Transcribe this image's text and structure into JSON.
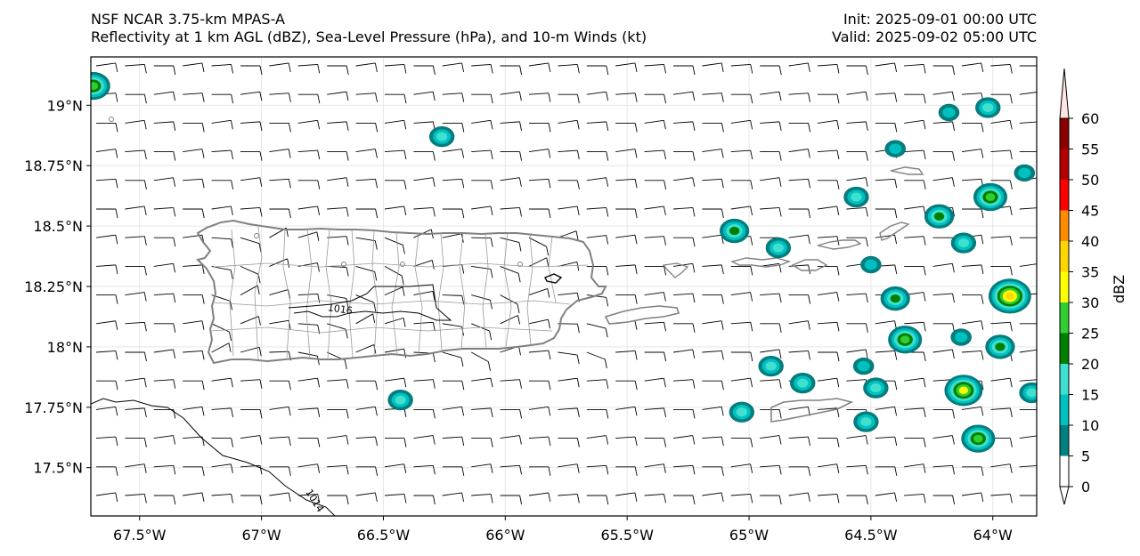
{
  "header": {
    "title_line1": "NSF NCAR 3.75-km MPAS-A",
    "title_line2": "Reflectivity at 1 km AGL (dBZ), Sea-Level Pressure (hPa), and 10-m Winds (kt)",
    "init": "Init: 2025-09-01 00:00 UTC",
    "valid": "Valid: 2025-09-02 05:00 UTC"
  },
  "map": {
    "lon_range": [
      -67.7,
      -63.82
    ],
    "lat_range": [
      17.3,
      19.2
    ],
    "lon_ticks": [
      {
        "value": -67.5,
        "label": "67.5°W"
      },
      {
        "value": -67.0,
        "label": "67°W"
      },
      {
        "value": -66.5,
        "label": "66.5°W"
      },
      {
        "value": -66.0,
        "label": "66°W"
      },
      {
        "value": -65.5,
        "label": "65.5°W"
      },
      {
        "value": -65.0,
        "label": "65°W"
      },
      {
        "value": -64.5,
        "label": "64.5°W"
      },
      {
        "value": -64.0,
        "label": "64°W"
      }
    ],
    "lat_ticks": [
      {
        "value": 19.0,
        "label": "19°N"
      },
      {
        "value": 18.75,
        "label": "18.75°N"
      },
      {
        "value": 18.5,
        "label": "18.5°N"
      },
      {
        "value": 18.25,
        "label": "18.25°N"
      },
      {
        "value": 18.0,
        "label": "18°N"
      },
      {
        "value": 17.75,
        "label": "17.75°N"
      },
      {
        "value": 17.5,
        "label": "17.5°N"
      }
    ],
    "isobars": [
      {
        "label": "1016",
        "label_lon": -66.73,
        "label_lat": 18.15
      },
      {
        "label": "1014",
        "label_lon": -66.82,
        "label_lat": 17.4
      }
    ],
    "coast_color": "#808080",
    "isobar_color": "#000000",
    "wind_barb_color": "#000000"
  },
  "colorbar": {
    "label": "dBZ",
    "ticks": [
      "0",
      "5",
      "10",
      "15",
      "20",
      "25",
      "30",
      "35",
      "40",
      "45",
      "50",
      "55",
      "60"
    ],
    "colors": [
      "#ffffff",
      "#008080",
      "#00c0c0",
      "#40e0d0",
      "#008000",
      "#32cd32",
      "#ffff00",
      "#ffd700",
      "#ff8c00",
      "#ff0000",
      "#b40000",
      "#8b0000",
      "#ff00ff",
      "#ffe4e1"
    ]
  },
  "echoes": [
    {
      "lon": -67.69,
      "lat": 19.08,
      "peak": 25
    },
    {
      "lon": -66.26,
      "lat": 18.87,
      "peak": 15
    },
    {
      "lon": -65.06,
      "lat": 18.48,
      "peak": 20
    },
    {
      "lon": -64.88,
      "lat": 18.41,
      "peak": 15
    },
    {
      "lon": -64.56,
      "lat": 18.62,
      "peak": 15
    },
    {
      "lon": -64.22,
      "lat": 18.54,
      "peak": 20
    },
    {
      "lon": -64.01,
      "lat": 18.62,
      "peak": 25
    },
    {
      "lon": -64.02,
      "lat": 18.99,
      "peak": 15
    },
    {
      "lon": -64.12,
      "lat": 18.43,
      "peak": 15
    },
    {
      "lon": -64.4,
      "lat": 18.2,
      "peak": 20
    },
    {
      "lon": -64.36,
      "lat": 18.03,
      "peak": 25
    },
    {
      "lon": -64.13,
      "lat": 18.04,
      "peak": 10
    },
    {
      "lon": -63.93,
      "lat": 18.21,
      "peak": 35
    },
    {
      "lon": -63.97,
      "lat": 18.0,
      "peak": 20
    },
    {
      "lon": -64.12,
      "lat": 17.82,
      "peak": 30
    },
    {
      "lon": -64.06,
      "lat": 17.62,
      "peak": 25
    },
    {
      "lon": -63.84,
      "lat": 17.81,
      "peak": 15
    },
    {
      "lon": -64.48,
      "lat": 17.83,
      "peak": 15
    },
    {
      "lon": -64.78,
      "lat": 17.85,
      "peak": 15
    },
    {
      "lon": -64.91,
      "lat": 17.92,
      "peak": 15
    },
    {
      "lon": -64.52,
      "lat": 17.69,
      "peak": 15
    },
    {
      "lon": -65.03,
      "lat": 17.73,
      "peak": 15
    },
    {
      "lon": -66.43,
      "lat": 17.78,
      "peak": 15
    },
    {
      "lon": -64.5,
      "lat": 18.34,
      "peak": 10
    },
    {
      "lon": -64.53,
      "lat": 17.92,
      "peak": 10
    },
    {
      "lon": -64.18,
      "lat": 18.97,
      "peak": 10
    },
    {
      "lon": -64.4,
      "lat": 18.82,
      "peak": 10
    },
    {
      "lon": -63.87,
      "lat": 18.72,
      "peak": 10
    }
  ]
}
